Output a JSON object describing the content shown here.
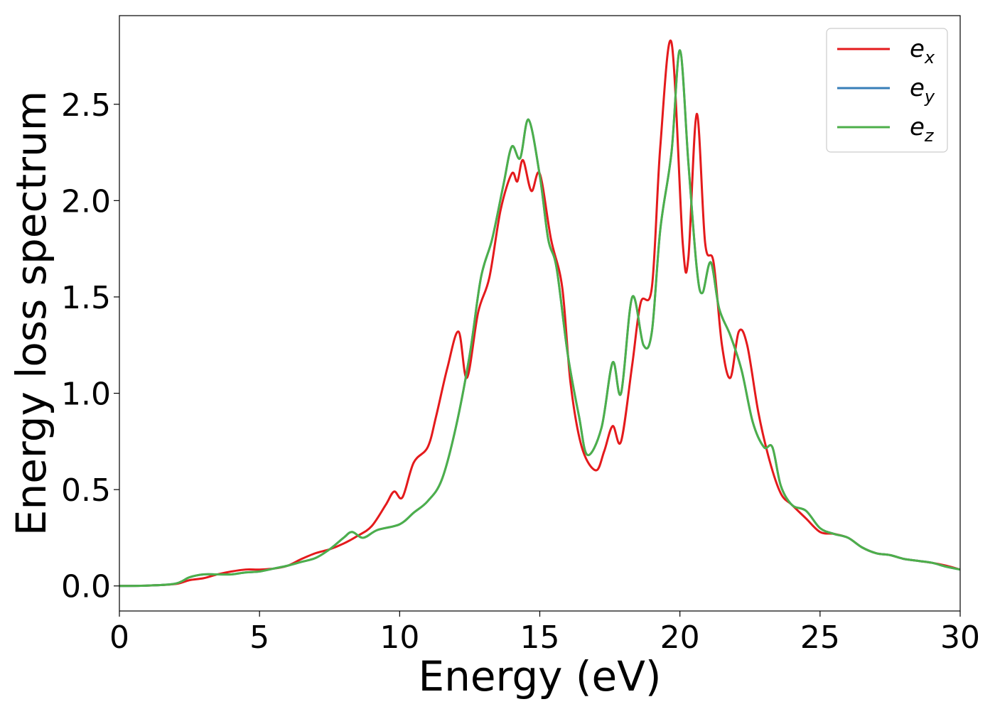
{
  "chart_data": {
    "type": "line",
    "title": "",
    "xlabel": "Energy (eV)",
    "ylabel": "Energy loss spectrum",
    "xlim": [
      0,
      30
    ],
    "ylim": [
      -0.13,
      2.96
    ],
    "x_ticks": [
      0,
      5,
      10,
      15,
      20,
      25,
      30
    ],
    "x_tick_labels": [
      "0",
      "5",
      "10",
      "15",
      "20",
      "25",
      "30"
    ],
    "y_ticks": [
      0.0,
      0.5,
      1.0,
      1.5,
      2.0,
      2.5
    ],
    "y_tick_labels": [
      "0.0",
      "0.5",
      "1.0",
      "1.5",
      "2.0",
      "2.5"
    ],
    "grid": false,
    "legend_position": "top-right",
    "series": [
      {
        "name": "e_x",
        "legend_base": "e",
        "legend_sub": "x",
        "color": "#e41a1c",
        "points": [
          [
            0,
            0
          ],
          [
            1,
            0.002
          ],
          [
            2,
            0.01
          ],
          [
            2.5,
            0.03
          ],
          [
            3,
            0.04
          ],
          [
            3.5,
            0.06
          ],
          [
            4,
            0.075
          ],
          [
            4.5,
            0.085
          ],
          [
            5,
            0.085
          ],
          [
            5.5,
            0.09
          ],
          [
            6,
            0.105
          ],
          [
            6.5,
            0.14
          ],
          [
            7,
            0.17
          ],
          [
            7.5,
            0.19
          ],
          [
            8,
            0.22
          ],
          [
            8.5,
            0.26
          ],
          [
            9,
            0.31
          ],
          [
            9.5,
            0.42
          ],
          [
            9.8,
            0.49
          ],
          [
            10.1,
            0.46
          ],
          [
            10.5,
            0.64
          ],
          [
            11,
            0.72
          ],
          [
            11.3,
            0.88
          ],
          [
            11.7,
            1.13
          ],
          [
            12.1,
            1.32
          ],
          [
            12.4,
            1.08
          ],
          [
            12.8,
            1.42
          ],
          [
            13.2,
            1.6
          ],
          [
            13.6,
            1.95
          ],
          [
            14,
            2.14
          ],
          [
            14.2,
            2.1
          ],
          [
            14.4,
            2.21
          ],
          [
            14.7,
            2.05
          ],
          [
            15,
            2.14
          ],
          [
            15.4,
            1.8
          ],
          [
            15.8,
            1.55
          ],
          [
            16.1,
            1.05
          ],
          [
            16.5,
            0.72
          ],
          [
            17,
            0.6
          ],
          [
            17.3,
            0.7
          ],
          [
            17.6,
            0.83
          ],
          [
            17.9,
            0.75
          ],
          [
            18.3,
            1.15
          ],
          [
            18.6,
            1.47
          ],
          [
            19,
            1.55
          ],
          [
            19.3,
            2.28
          ],
          [
            19.7,
            2.82
          ],
          [
            20.1,
            1.78
          ],
          [
            20.3,
            1.7
          ],
          [
            20.6,
            2.45
          ],
          [
            20.9,
            1.78
          ],
          [
            21.2,
            1.68
          ],
          [
            21.5,
            1.25
          ],
          [
            21.8,
            1.08
          ],
          [
            22.1,
            1.32
          ],
          [
            22.4,
            1.25
          ],
          [
            22.8,
            0.9
          ],
          [
            23.2,
            0.65
          ],
          [
            23.6,
            0.48
          ],
          [
            24,
            0.42
          ],
          [
            24.5,
            0.35
          ],
          [
            25,
            0.28
          ],
          [
            25.5,
            0.27
          ],
          [
            26,
            0.25
          ],
          [
            26.5,
            0.2
          ],
          [
            27,
            0.17
          ],
          [
            27.5,
            0.16
          ],
          [
            28,
            0.14
          ],
          [
            28.5,
            0.13
          ],
          [
            29,
            0.12
          ],
          [
            29.5,
            0.105
          ],
          [
            30,
            0.085
          ]
        ]
      },
      {
        "name": "e_y",
        "legend_base": "e",
        "legend_sub": "y",
        "color": "#377eb8",
        "points": [
          [
            0,
            0
          ],
          [
            1,
            0.002
          ],
          [
            2,
            0.012
          ],
          [
            2.5,
            0.045
          ],
          [
            3,
            0.06
          ],
          [
            3.5,
            0.06
          ],
          [
            4,
            0.06
          ],
          [
            4.5,
            0.07
          ],
          [
            5,
            0.075
          ],
          [
            5.5,
            0.09
          ],
          [
            6,
            0.105
          ],
          [
            6.5,
            0.125
          ],
          [
            7,
            0.145
          ],
          [
            7.5,
            0.19
          ],
          [
            8,
            0.25
          ],
          [
            8.3,
            0.28
          ],
          [
            8.7,
            0.25
          ],
          [
            9.2,
            0.29
          ],
          [
            10,
            0.32
          ],
          [
            10.5,
            0.38
          ],
          [
            11,
            0.44
          ],
          [
            11.5,
            0.55
          ],
          [
            12,
            0.82
          ],
          [
            12.5,
            1.2
          ],
          [
            12.9,
            1.6
          ],
          [
            13.3,
            1.8
          ],
          [
            13.7,
            2.08
          ],
          [
            14,
            2.28
          ],
          [
            14.3,
            2.22
          ],
          [
            14.6,
            2.42
          ],
          [
            15,
            2.13
          ],
          [
            15.3,
            1.8
          ],
          [
            15.6,
            1.65
          ],
          [
            16,
            1.2
          ],
          [
            16.4,
            0.88
          ],
          [
            16.7,
            0.68
          ],
          [
            17.2,
            0.82
          ],
          [
            17.6,
            1.16
          ],
          [
            17.9,
            1.0
          ],
          [
            18.3,
            1.5
          ],
          [
            18.7,
            1.25
          ],
          [
            19,
            1.32
          ],
          [
            19.3,
            1.85
          ],
          [
            19.7,
            2.25
          ],
          [
            20,
            2.78
          ],
          [
            20.3,
            2.2
          ],
          [
            20.6,
            1.65
          ],
          [
            20.8,
            1.52
          ],
          [
            21.1,
            1.68
          ],
          [
            21.4,
            1.44
          ],
          [
            21.8,
            1.3
          ],
          [
            22.2,
            1.12
          ],
          [
            22.6,
            0.85
          ],
          [
            23,
            0.72
          ],
          [
            23.3,
            0.72
          ],
          [
            23.6,
            0.52
          ],
          [
            24,
            0.42
          ],
          [
            24.5,
            0.39
          ],
          [
            25,
            0.3
          ],
          [
            25.5,
            0.27
          ],
          [
            26,
            0.25
          ],
          [
            26.5,
            0.2
          ],
          [
            27,
            0.17
          ],
          [
            27.5,
            0.16
          ],
          [
            28,
            0.14
          ],
          [
            28.5,
            0.13
          ],
          [
            29,
            0.12
          ],
          [
            29.5,
            0.1
          ],
          [
            30,
            0.085
          ]
        ]
      },
      {
        "name": "e_z",
        "legend_base": "e",
        "legend_sub": "z",
        "color": "#4daf4a",
        "points": [
          [
            0,
            0
          ],
          [
            1,
            0.002
          ],
          [
            2,
            0.012
          ],
          [
            2.5,
            0.045
          ],
          [
            3,
            0.06
          ],
          [
            3.5,
            0.06
          ],
          [
            4,
            0.06
          ],
          [
            4.5,
            0.07
          ],
          [
            5,
            0.075
          ],
          [
            5.5,
            0.09
          ],
          [
            6,
            0.105
          ],
          [
            6.5,
            0.125
          ],
          [
            7,
            0.145
          ],
          [
            7.5,
            0.19
          ],
          [
            8,
            0.25
          ],
          [
            8.3,
            0.28
          ],
          [
            8.7,
            0.25
          ],
          [
            9.2,
            0.29
          ],
          [
            10,
            0.32
          ],
          [
            10.5,
            0.38
          ],
          [
            11,
            0.44
          ],
          [
            11.5,
            0.55
          ],
          [
            12,
            0.82
          ],
          [
            12.5,
            1.2
          ],
          [
            12.9,
            1.6
          ],
          [
            13.3,
            1.8
          ],
          [
            13.7,
            2.08
          ],
          [
            14,
            2.28
          ],
          [
            14.3,
            2.22
          ],
          [
            14.6,
            2.42
          ],
          [
            15,
            2.13
          ],
          [
            15.3,
            1.8
          ],
          [
            15.6,
            1.65
          ],
          [
            16,
            1.2
          ],
          [
            16.4,
            0.88
          ],
          [
            16.7,
            0.68
          ],
          [
            17.2,
            0.82
          ],
          [
            17.6,
            1.16
          ],
          [
            17.9,
            1.0
          ],
          [
            18.3,
            1.5
          ],
          [
            18.7,
            1.25
          ],
          [
            19,
            1.32
          ],
          [
            19.3,
            1.85
          ],
          [
            19.7,
            2.25
          ],
          [
            20,
            2.78
          ],
          [
            20.3,
            2.2
          ],
          [
            20.6,
            1.65
          ],
          [
            20.8,
            1.52
          ],
          [
            21.1,
            1.68
          ],
          [
            21.4,
            1.44
          ],
          [
            21.8,
            1.3
          ],
          [
            22.2,
            1.12
          ],
          [
            22.6,
            0.85
          ],
          [
            23,
            0.72
          ],
          [
            23.3,
            0.72
          ],
          [
            23.6,
            0.52
          ],
          [
            24,
            0.42
          ],
          [
            24.5,
            0.39
          ],
          [
            25,
            0.3
          ],
          [
            25.5,
            0.27
          ],
          [
            26,
            0.25
          ],
          [
            26.5,
            0.2
          ],
          [
            27,
            0.17
          ],
          [
            27.5,
            0.16
          ],
          [
            28,
            0.14
          ],
          [
            28.5,
            0.13
          ],
          [
            29,
            0.12
          ],
          [
            29.5,
            0.1
          ],
          [
            30,
            0.085
          ]
        ]
      }
    ]
  }
}
